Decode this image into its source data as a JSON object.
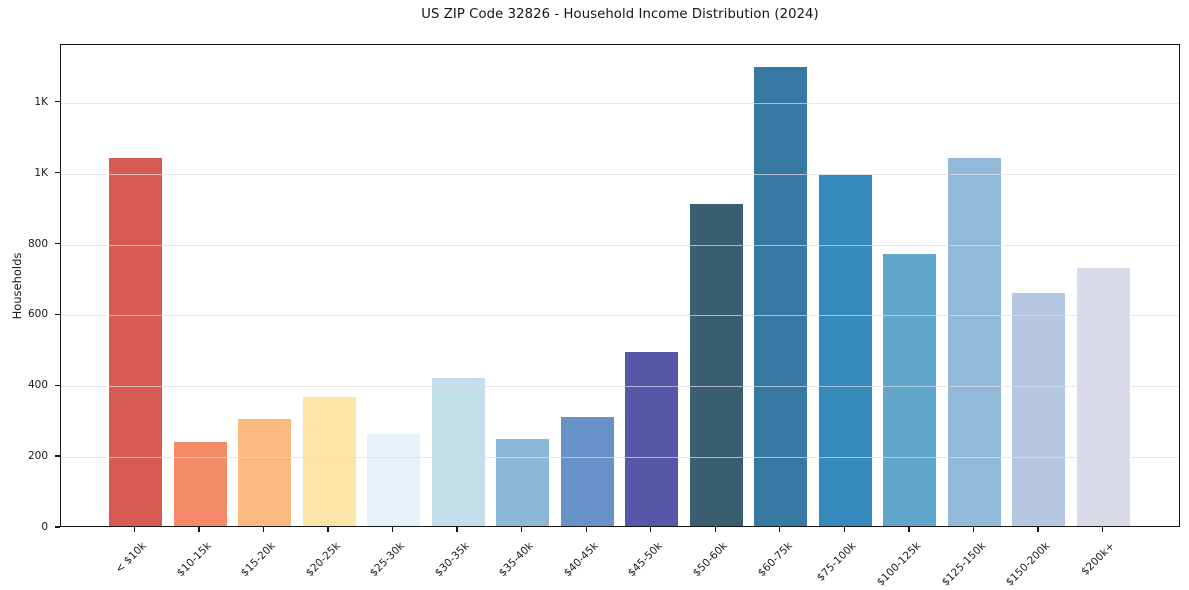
{
  "chart_data": {
    "type": "bar",
    "title": "US ZIP Code 32826 - Household Income Distribution (2024)",
    "xlabel": "",
    "ylabel": "Households",
    "categories": [
      "< $10k",
      "$10-15k",
      "$15-20k",
      "$20-25k",
      "$25-30k",
      "$30-35k",
      "$35-40k",
      "$40-45k",
      "$45-50k",
      "$50-60k",
      "$60-75k",
      "$75-100k",
      "$100-125k",
      "$125-150k",
      "$150-200k",
      "$200k+"
    ],
    "values": [
      1040,
      238,
      302,
      365,
      260,
      417,
      247,
      308,
      492,
      909,
      1296,
      991,
      768,
      1038,
      657,
      729
    ],
    "bar_colors": [
      "#d65b52",
      "#f58a68",
      "#fab97d",
      "#fce5a6",
      "#e6f2f7",
      "#c3dfeb",
      "#8cb8d8",
      "#6692c8",
      "#5657a8",
      "#3a5f70",
      "#3879a3",
      "#358abc",
      "#60a7cb",
      "#93b9da",
      "#b4c6e0",
      "#d8dae8"
    ],
    "ylim": [
      0,
      1363
    ],
    "yticks": {
      "values": [
        0,
        200,
        400,
        600,
        800,
        1000,
        1200
      ],
      "labels": [
        "0",
        "200",
        "400",
        "600",
        "800",
        "1K",
        "1K"
      ]
    },
    "grid": true,
    "legend_position": "none",
    "axis_color": "#151515",
    "grid_color": "#dddde5",
    "background_color": "#ffffff"
  }
}
